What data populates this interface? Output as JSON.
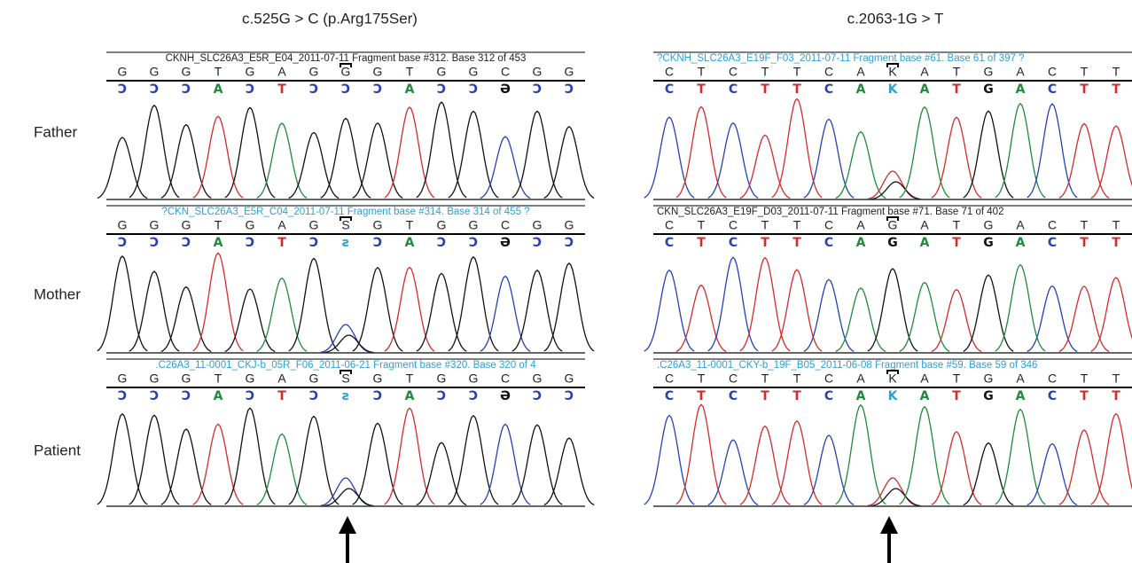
{
  "titles": [
    "c.525G > C (p.Arg175Ser)",
    "c.2063-1G > T"
  ],
  "rows": [
    "Father",
    "Mother",
    "Patient"
  ],
  "letter_colors": {
    "A": "#1f8a3a",
    "C": "#2540b8",
    "G": "#111111",
    "T": "#d62a2a",
    "K": "#2aa0d8",
    "S": "#2aa0d8",
    "Ɔ": "#2540b8",
    "Ə": "#111111",
    "ƨ": "#2aa0d8"
  },
  "peak_colors": {
    "A": [
      "#1f8a3a"
    ],
    "C": [
      "#2540b8"
    ],
    "G": [
      "#111111"
    ],
    "T": [
      "#d62a2a"
    ],
    "K": [
      "#d62a2a",
      "#111111"
    ],
    "S": [
      "#2540b8",
      "#111111"
    ]
  },
  "panels": [
    [
      {
        "header": "CKNH_SLC26A3_E5R_E04_2011-07-11 Fragment base #312. Base 312 of 453",
        "header_color": "#222222",
        "bases": [
          "G",
          "G",
          "G",
          "T",
          "G",
          "A",
          "G",
          "G",
          "G",
          "T",
          "G",
          "G",
          "C",
          "G",
          "G"
        ],
        "calls": [
          "Ɔ",
          "Ɔ",
          "Ɔ",
          "A",
          "Ɔ",
          "T",
          "Ɔ",
          "Ɔ",
          "Ɔ",
          "A",
          "Ɔ",
          "Ɔ",
          "Ə",
          "Ɔ",
          "Ɔ"
        ]
      },
      {
        "header": "?CKN_SLC26A3_E5R_C04_2011-07-11 Fragment base #314. Base 314 of 455 ?",
        "header_color": "#2aa0d8",
        "bases": [
          "G",
          "G",
          "G",
          "T",
          "G",
          "A",
          "G",
          "S",
          "G",
          "T",
          "G",
          "G",
          "C",
          "G",
          "G"
        ],
        "calls": [
          "Ɔ",
          "Ɔ",
          "Ɔ",
          "A",
          "Ɔ",
          "T",
          "Ɔ",
          "ƨ",
          "Ɔ",
          "A",
          "Ɔ",
          "Ɔ",
          "Ə",
          "Ɔ",
          "Ɔ"
        ]
      },
      {
        "header": ".C26A3_11-0001_CKJ-b_05R_F06_2011-06-21 Fragment base #320. Base 320 of 4",
        "header_color": "#2aa0d8",
        "bases": [
          "G",
          "G",
          "G",
          "T",
          "G",
          "A",
          "G",
          "S",
          "G",
          "T",
          "G",
          "G",
          "C",
          "G",
          "G"
        ],
        "calls": [
          "Ɔ",
          "Ɔ",
          "Ɔ",
          "A",
          "Ɔ",
          "T",
          "Ɔ",
          "ƨ",
          "Ɔ",
          "A",
          "Ɔ",
          "Ɔ",
          "Ə",
          "Ɔ",
          "Ɔ"
        ]
      }
    ],
    [
      {
        "header": "?CKNH_SLC26A3_E19F_F03_2011-07-11 Fragment base #61. Base 61 of 397 ?",
        "header_color": "#2aa0d8",
        "bases": [
          "C",
          "T",
          "C",
          "T",
          "T",
          "C",
          "A",
          "K",
          "A",
          "T",
          "G",
          "A",
          "C",
          "T",
          "T"
        ],
        "calls": [
          "C",
          "T",
          "C",
          "T",
          "T",
          "C",
          "A",
          "K",
          "A",
          "T",
          "G",
          "A",
          "C",
          "T",
          "T"
        ]
      },
      {
        "header": "CKN_SLC26A3_E19F_D03_2011-07-11 Fragment base #71. Base 71 of 402",
        "header_color": "#222222",
        "bases": [
          "C",
          "T",
          "C",
          "T",
          "T",
          "C",
          "A",
          "G",
          "A",
          "T",
          "G",
          "A",
          "C",
          "T",
          "T"
        ],
        "calls": [
          "C",
          "T",
          "C",
          "T",
          "T",
          "C",
          "A",
          "G",
          "A",
          "T",
          "G",
          "A",
          "C",
          "T",
          "T"
        ]
      },
      {
        "header": ".C26A3_11-0001_CKY-b_19F_B05_2011-06-08 Fragment base #59. Base 59 of 346",
        "header_color": "#2aa0d8",
        "bases": [
          "C",
          "T",
          "C",
          "T",
          "T",
          "C",
          "A",
          "K",
          "A",
          "T",
          "G",
          "A",
          "C",
          "T",
          "T"
        ],
        "calls": [
          "C",
          "T",
          "C",
          "T",
          "T",
          "C",
          "A",
          "K",
          "A",
          "T",
          "G",
          "A",
          "C",
          "T",
          "T"
        ]
      }
    ]
  ]
}
